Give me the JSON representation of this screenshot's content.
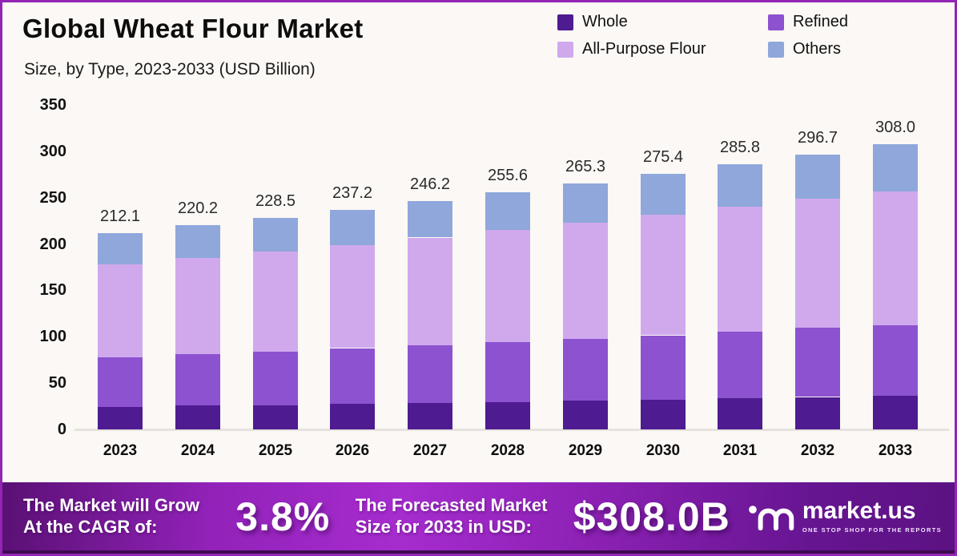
{
  "header": {
    "title": "Global Wheat Flour Market",
    "subtitle": "Size, by Type, 2023-2033 (USD Billion)"
  },
  "colors": {
    "whole": "#4E1B90",
    "refined": "#8C52D0",
    "all_purpose": "#D0A9ED",
    "others": "#8FA7DB",
    "page_border": "#9325B4",
    "background": "#FBF8F5"
  },
  "chart_data": {
    "type": "bar",
    "stacked": true,
    "title": "Global Wheat Flour Market Size, by Type, 2023-2033 (USD Billion)",
    "categories": [
      "2023",
      "2024",
      "2025",
      "2026",
      "2027",
      "2028",
      "2029",
      "2030",
      "2031",
      "2032",
      "2033"
    ],
    "totals": [
      212.1,
      220.2,
      228.5,
      237.2,
      246.2,
      255.6,
      265.3,
      275.4,
      285.8,
      296.7,
      308.0
    ],
    "series": [
      {
        "name": "Whole",
        "color": "#4E1B90",
        "values": [
          24.5,
          25.5,
          26.5,
          27.6,
          28.7,
          29.8,
          31.0,
          32.2,
          33.5,
          34.9,
          36.5
        ]
      },
      {
        "name": "Refined",
        "color": "#8C52D0",
        "values": [
          53.5,
          55.5,
          57.6,
          59.8,
          62.0,
          64.4,
          66.8,
          69.3,
          71.9,
          74.6,
          76.5
        ]
      },
      {
        "name": "All-Purpose Flour",
        "color": "#D0A9ED",
        "values": [
          100.0,
          103.9,
          107.8,
          111.9,
          116.2,
          120.6,
          125.2,
          130.0,
          134.9,
          140.0,
          144.0
        ]
      },
      {
        "name": "Others",
        "color": "#8FA7DB",
        "values": [
          34.1,
          35.3,
          36.6,
          37.9,
          39.3,
          40.8,
          42.3,
          43.9,
          45.5,
          47.2,
          51.0
        ]
      }
    ],
    "xlabel": "",
    "ylabel": "",
    "ylim": [
      0,
      350
    ],
    "yticks": [
      0,
      50,
      100,
      150,
      200,
      250,
      300,
      350
    ],
    "grid": false,
    "legend_position": "top-right",
    "legend": [
      "Whole",
      "Refined",
      "All-Purpose Flour",
      "Others"
    ]
  },
  "banner": {
    "gradient": [
      "#5A1074",
      "#9222B9",
      "#A62CCE",
      "#8C21B4",
      "#661591",
      "#5C1282"
    ],
    "cagr_line1": "The Market will Grow",
    "cagr_line2": "At the CAGR of:",
    "cagr_value": "3.8%",
    "forecast_line1": "The Forecasted Market",
    "forecast_line2": "Size for 2033 in USD:",
    "forecast_value": "$308.0B",
    "logo_name": "market.us",
    "logo_tagline": "ONE STOP SHOP FOR THE REPORTS"
  }
}
